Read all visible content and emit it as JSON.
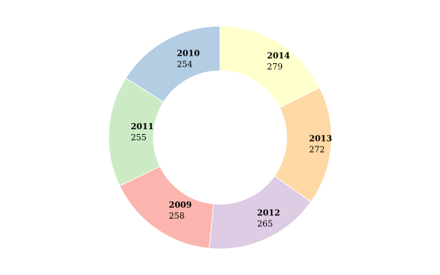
{
  "chart_data": {
    "type": "donut",
    "categories": [
      "2014",
      "2013",
      "2012",
      "2009",
      "2011",
      "2010"
    ],
    "values": [
      279,
      272,
      265,
      258,
      255,
      254
    ],
    "colors": [
      "#ffffcc",
      "#fed9a6",
      "#decbe4",
      "#fbb4ae",
      "#ccebc5",
      "#b3cde3"
    ]
  }
}
